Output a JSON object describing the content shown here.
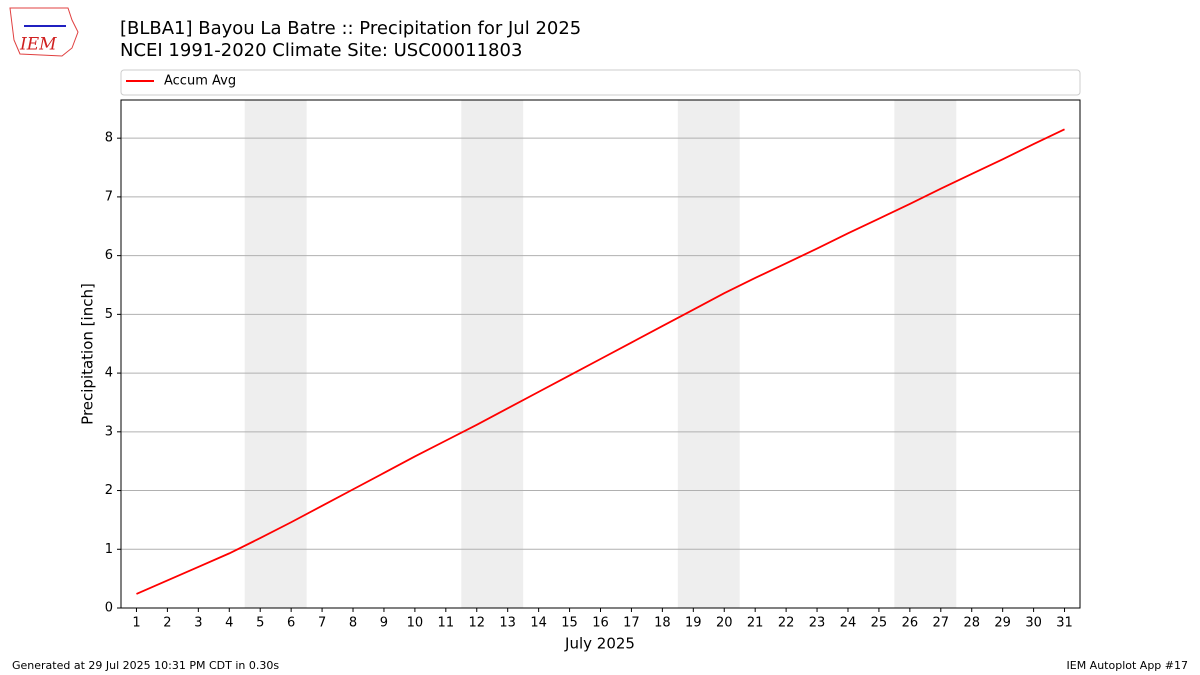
{
  "chart_data": {
    "type": "line",
    "title": "[BLBA1] Bayou La Batre :: Precipitation for Jul 2025",
    "subtitle": "NCEI 1991-2020 Climate Site: USC00011803",
    "x_label": "July 2025",
    "y_label": "Precipitation [inch]",
    "x": [
      1,
      2,
      3,
      4,
      5,
      6,
      7,
      8,
      9,
      10,
      11,
      12,
      13,
      14,
      15,
      16,
      17,
      18,
      19,
      20,
      21,
      22,
      23,
      24,
      25,
      26,
      27,
      28,
      29,
      30,
      31
    ],
    "series": [
      {
        "name": "Accum Avg",
        "color": "#ff0000",
        "values": [
          0.24,
          0.47,
          0.7,
          0.93,
          1.19,
          1.46,
          1.74,
          2.02,
          2.3,
          2.58,
          2.85,
          3.12,
          3.4,
          3.68,
          3.96,
          4.24,
          4.52,
          4.8,
          5.08,
          5.36,
          5.62,
          5.87,
          6.12,
          6.38,
          6.63,
          6.88,
          7.14,
          7.39,
          7.64,
          7.9,
          8.15
        ]
      }
    ],
    "weekend_spans": [
      [
        4.5,
        6.5
      ],
      [
        11.5,
        13.5
      ],
      [
        18.5,
        20.5
      ],
      [
        25.5,
        27.5
      ]
    ],
    "weekend_color": "#eeeeee",
    "xlim": [
      0.5,
      31.5
    ],
    "xticks": [
      1,
      2,
      3,
      4,
      5,
      6,
      7,
      8,
      9,
      10,
      11,
      12,
      13,
      14,
      15,
      16,
      17,
      18,
      19,
      20,
      21,
      22,
      23,
      24,
      25,
      26,
      27,
      28,
      29,
      30,
      31
    ],
    "ylim": [
      0,
      8.65
    ],
    "yticks": [
      0,
      1,
      2,
      3,
      4,
      5,
      6,
      7,
      8
    ],
    "grid": true,
    "legend": "top",
    "logo": "IEM",
    "footer_left": "Generated at 29 Jul 2025 10:31 PM CDT in 0.30s",
    "footer_right": "IEM Autoplot App #17"
  }
}
